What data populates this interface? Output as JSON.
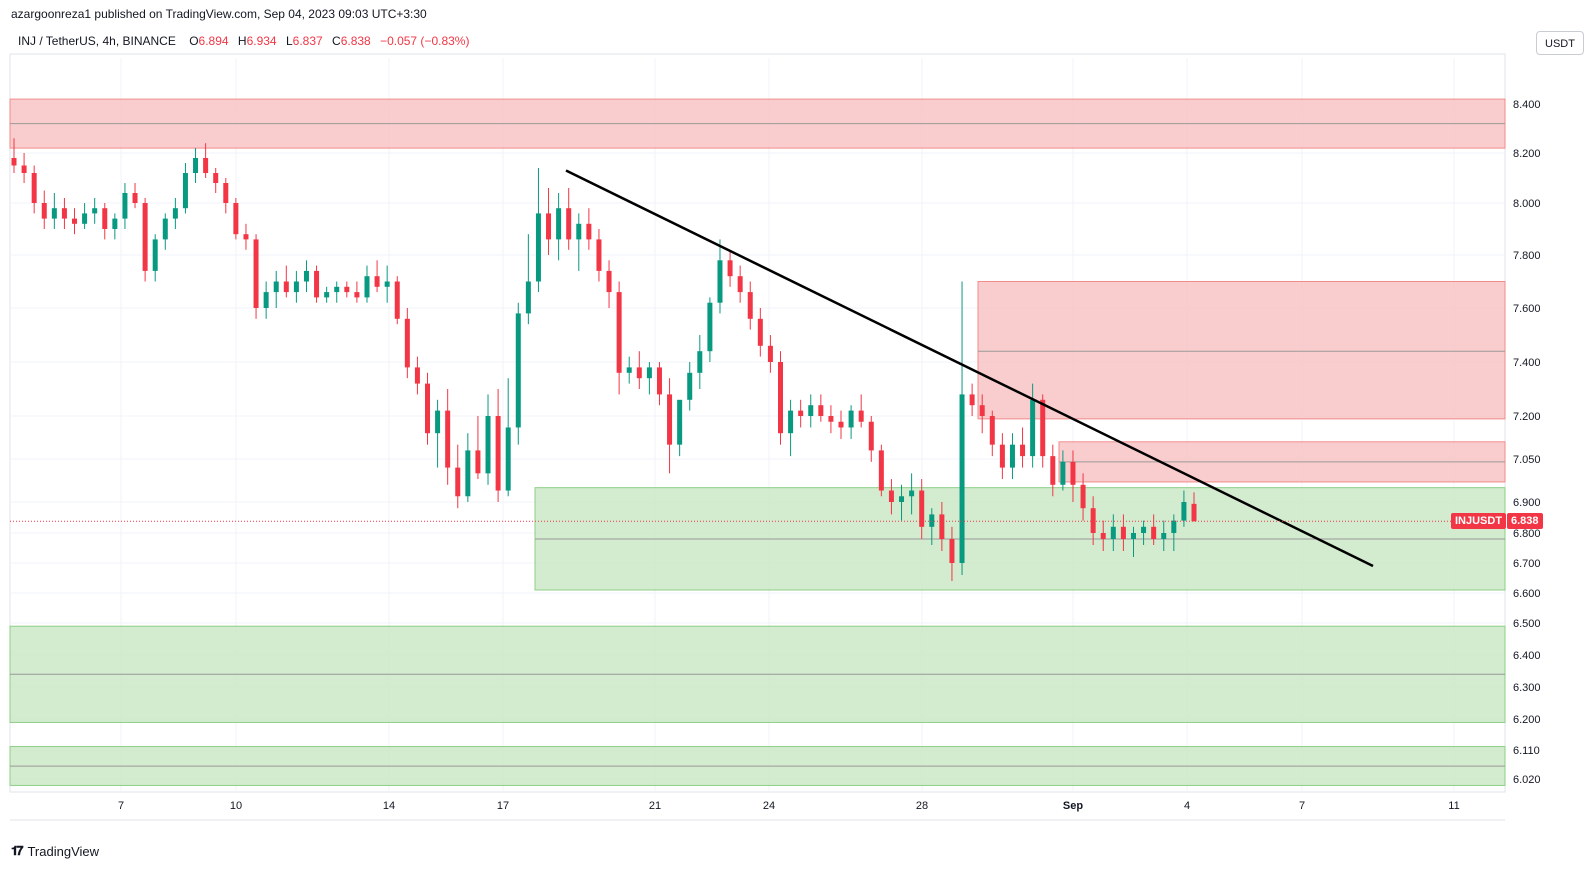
{
  "header": {
    "published_line": "azargoonreza1 published on TradingView.com, Sep 04, 2023 09:03 UTC+3:30"
  },
  "legend": {
    "symbol": "INJ / TetherUS, 4h, BINANCE",
    "open_label": "O",
    "open": "6.894",
    "high_label": "H",
    "high": "6.934",
    "low_label": "L",
    "low": "6.837",
    "close_label": "C",
    "close": "6.838",
    "change": "−0.057 (−0.83%)"
  },
  "toolbar": {
    "currency_label": "USDT"
  },
  "last_price": {
    "ticker": "INJUSDT",
    "value": "6.838",
    "price": 6.838
  },
  "footer": {
    "brand": "TradingView"
  },
  "colors": {
    "up": "#089981",
    "down": "#f23645",
    "supply_zone": "#f8c4c4",
    "demand_zone": "#cbe8c6",
    "trendline": "#000000"
  },
  "chart_data": {
    "type": "candlestick",
    "timeframe": "4h",
    "y_axis_ticks": [
      8.4,
      8.2,
      8.0,
      7.8,
      7.6,
      7.4,
      7.2,
      7.05,
      6.9,
      6.8,
      6.7,
      6.6,
      6.5,
      6.4,
      6.3,
      6.2,
      6.11,
      6.02
    ],
    "y_axis_tick_labels": [
      "8.400",
      "8.200",
      "8.000",
      "7.800",
      "7.600",
      "7.400",
      "7.200",
      "7.050",
      "6.900",
      "6.800",
      "6.700",
      "6.600",
      "6.500",
      "6.400",
      "6.300",
      "6.200",
      "6.110",
      "6.020"
    ],
    "x_axis_ticks": [
      "7",
      "10",
      "14",
      "17",
      "21",
      "24",
      "28",
      "Sep",
      "4",
      "7",
      "11"
    ],
    "zones": [
      {
        "kind": "supply",
        "price_top": 8.42,
        "price_bottom": 8.22,
        "price_mid": 8.32
      },
      {
        "kind": "supply",
        "price_top": 7.7,
        "price_bottom": 7.19,
        "price_mid": 7.44
      },
      {
        "kind": "supply",
        "price_top": 7.11,
        "price_bottom": 6.97,
        "price_mid": 7.04
      },
      {
        "kind": "demand",
        "price_top": 6.95,
        "price_bottom": 6.61,
        "price_mid": 6.78
      },
      {
        "kind": "demand",
        "price_top": 6.49,
        "price_bottom": 6.19,
        "price_mid": 6.34
      },
      {
        "kind": "demand",
        "price_top": 6.12,
        "price_bottom": 6.0,
        "price_mid": 6.06
      }
    ],
    "trendline": {
      "start_price": 8.13,
      "end_price": 6.69
    },
    "candles_ohlc_approx": [
      [
        8.18,
        8.26,
        8.12,
        8.15
      ],
      [
        8.15,
        8.2,
        8.08,
        8.12
      ],
      [
        8.12,
        8.15,
        7.96,
        8.0
      ],
      [
        8.0,
        8.05,
        7.9,
        7.94
      ],
      [
        7.94,
        8.04,
        7.9,
        7.98
      ],
      [
        7.98,
        8.02,
        7.9,
        7.94
      ],
      [
        7.94,
        7.98,
        7.88,
        7.92
      ],
      [
        7.92,
        8.0,
        7.9,
        7.96
      ],
      [
        7.96,
        8.02,
        7.92,
        7.98
      ],
      [
        7.98,
        8.0,
        7.86,
        7.9
      ],
      [
        7.9,
        7.96,
        7.86,
        7.94
      ],
      [
        7.94,
        8.08,
        7.9,
        8.04
      ],
      [
        8.04,
        8.08,
        7.98,
        8.0
      ],
      [
        8.0,
        8.02,
        7.7,
        7.74
      ],
      [
        7.74,
        7.88,
        7.7,
        7.86
      ],
      [
        7.86,
        7.96,
        7.82,
        7.94
      ],
      [
        7.94,
        8.02,
        7.9,
        7.98
      ],
      [
        7.98,
        8.16,
        7.96,
        8.12
      ],
      [
        8.12,
        8.22,
        8.08,
        8.18
      ],
      [
        8.18,
        8.24,
        8.1,
        8.12
      ],
      [
        8.12,
        8.14,
        8.04,
        8.08
      ],
      [
        8.08,
        8.1,
        7.96,
        8.0
      ],
      [
        8.0,
        8.02,
        7.86,
        7.88
      ],
      [
        7.88,
        7.92,
        7.82,
        7.86
      ],
      [
        7.86,
        7.88,
        7.56,
        7.6
      ],
      [
        7.6,
        7.7,
        7.56,
        7.66
      ],
      [
        7.66,
        7.74,
        7.6,
        7.7
      ],
      [
        7.7,
        7.76,
        7.64,
        7.66
      ],
      [
        7.66,
        7.74,
        7.62,
        7.7
      ],
      [
        7.7,
        7.78,
        7.66,
        7.74
      ],
      [
        7.74,
        7.76,
        7.62,
        7.64
      ],
      [
        7.64,
        7.68,
        7.62,
        7.66
      ],
      [
        7.66,
        7.7,
        7.62,
        7.68
      ],
      [
        7.68,
        7.7,
        7.64,
        7.66
      ],
      [
        7.66,
        7.7,
        7.62,
        7.64
      ],
      [
        7.64,
        7.76,
        7.62,
        7.72
      ],
      [
        7.72,
        7.78,
        7.66,
        7.68
      ],
      [
        7.68,
        7.76,
        7.62,
        7.7
      ],
      [
        7.7,
        7.72,
        7.54,
        7.56
      ],
      [
        7.56,
        7.6,
        7.34,
        7.38
      ],
      [
        7.38,
        7.42,
        7.28,
        7.32
      ],
      [
        7.32,
        7.36,
        7.1,
        7.14
      ],
      [
        7.14,
        7.26,
        7.02,
        7.22
      ],
      [
        7.22,
        7.3,
        6.96,
        7.02
      ],
      [
        7.02,
        7.1,
        6.88,
        6.92
      ],
      [
        6.92,
        7.14,
        6.9,
        7.08
      ],
      [
        7.08,
        7.2,
        6.98,
        7.0
      ],
      [
        7.0,
        7.28,
        6.96,
        7.2
      ],
      [
        7.2,
        7.3,
        6.9,
        6.94
      ],
      [
        6.94,
        7.34,
        6.92,
        7.16
      ],
      [
        7.16,
        7.62,
        7.1,
        7.58
      ],
      [
        7.58,
        7.88,
        7.54,
        7.7
      ],
      [
        7.7,
        8.14,
        7.66,
        7.96
      ],
      [
        7.96,
        8.06,
        7.8,
        7.86
      ],
      [
        7.86,
        8.04,
        7.78,
        7.98
      ],
      [
        7.98,
        8.06,
        7.82,
        7.86
      ],
      [
        7.86,
        7.96,
        7.74,
        7.92
      ],
      [
        7.92,
        7.98,
        7.82,
        7.86
      ],
      [
        7.86,
        7.9,
        7.7,
        7.74
      ],
      [
        7.74,
        7.78,
        7.6,
        7.66
      ],
      [
        7.66,
        7.7,
        7.28,
        7.36
      ],
      [
        7.36,
        7.42,
        7.32,
        7.38
      ],
      [
        7.38,
        7.44,
        7.3,
        7.34
      ],
      [
        7.34,
        7.4,
        7.28,
        7.38
      ],
      [
        7.38,
        7.4,
        7.24,
        7.28
      ],
      [
        7.28,
        7.34,
        7.0,
        7.1
      ],
      [
        7.1,
        7.24,
        7.06,
        7.26
      ],
      [
        7.26,
        7.4,
        7.22,
        7.36
      ],
      [
        7.36,
        7.5,
        7.3,
        7.44
      ],
      [
        7.44,
        7.64,
        7.4,
        7.62
      ],
      [
        7.62,
        7.86,
        7.58,
        7.78
      ],
      [
        7.78,
        7.82,
        7.68,
        7.72
      ],
      [
        7.72,
        7.76,
        7.62,
        7.66
      ],
      [
        7.66,
        7.7,
        7.52,
        7.56
      ],
      [
        7.56,
        7.6,
        7.42,
        7.46
      ],
      [
        7.46,
        7.5,
        7.36,
        7.4
      ],
      [
        7.4,
        7.44,
        7.1,
        7.14
      ],
      [
        7.14,
        7.26,
        7.06,
        7.22
      ],
      [
        7.22,
        7.26,
        7.16,
        7.2
      ],
      [
        7.2,
        7.28,
        7.16,
        7.24
      ],
      [
        7.24,
        7.28,
        7.18,
        7.2
      ],
      [
        7.2,
        7.24,
        7.14,
        7.18
      ],
      [
        7.18,
        7.22,
        7.12,
        7.16
      ],
      [
        7.16,
        7.24,
        7.12,
        7.22
      ],
      [
        7.22,
        7.28,
        7.16,
        7.18
      ],
      [
        7.18,
        7.2,
        7.04,
        7.08
      ],
      [
        7.08,
        7.1,
        6.92,
        6.94
      ],
      [
        6.94,
        6.98,
        6.86,
        6.9
      ],
      [
        6.9,
        6.96,
        6.84,
        6.92
      ],
      [
        6.92,
        7.0,
        6.86,
        6.94
      ],
      [
        6.94,
        6.98,
        6.78,
        6.82
      ],
      [
        6.82,
        6.88,
        6.76,
        6.86
      ],
      [
        6.86,
        6.9,
        6.74,
        6.78
      ],
      [
        6.78,
        6.82,
        6.64,
        6.7
      ],
      [
        6.7,
        7.7,
        6.66,
        7.28
      ],
      [
        7.28,
        7.32,
        7.2,
        7.24
      ],
      [
        7.24,
        7.28,
        7.14,
        7.2
      ],
      [
        7.2,
        7.22,
        7.06,
        7.1
      ],
      [
        7.1,
        7.14,
        6.98,
        7.02
      ],
      [
        7.02,
        7.14,
        6.98,
        7.1
      ],
      [
        7.1,
        7.16,
        7.02,
        7.06
      ],
      [
        7.06,
        7.32,
        7.02,
        7.26
      ],
      [
        7.26,
        7.28,
        7.02,
        7.06
      ],
      [
        7.06,
        7.1,
        6.92,
        6.96
      ],
      [
        6.96,
        7.08,
        6.94,
        7.04
      ],
      [
        7.04,
        7.08,
        6.9,
        6.96
      ],
      [
        6.96,
        7.0,
        6.84,
        6.88
      ],
      [
        6.88,
        6.92,
        6.76,
        6.8
      ],
      [
        6.8,
        6.84,
        6.74,
        6.78
      ],
      [
        6.78,
        6.86,
        6.74,
        6.82
      ],
      [
        6.82,
        6.86,
        6.74,
        6.78
      ],
      [
        6.78,
        6.82,
        6.72,
        6.8
      ],
      [
        6.8,
        6.84,
        6.76,
        6.82
      ],
      [
        6.82,
        6.86,
        6.76,
        6.78
      ],
      [
        6.78,
        6.84,
        6.74,
        6.8
      ],
      [
        6.8,
        6.86,
        6.74,
        6.84
      ],
      [
        6.84,
        6.94,
        6.82,
        6.9
      ],
      [
        6.894,
        6.934,
        6.837,
        6.838
      ]
    ],
    "ylim": [
      5.98,
      8.6
    ],
    "grid": true
  }
}
